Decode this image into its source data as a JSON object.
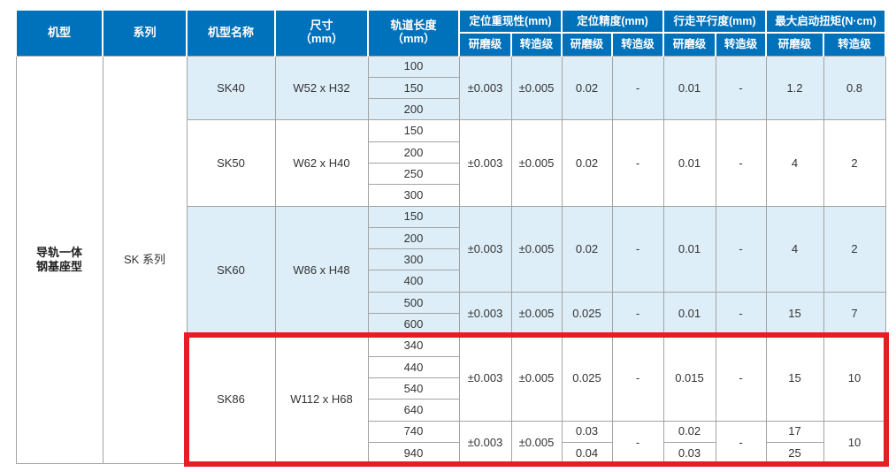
{
  "colors": {
    "header_bg": "#0072bc",
    "header_text": "#ffffff",
    "shaded_block_bg": "#deeef8",
    "grid_line": "#a3a3a3",
    "highlight_border": "#e31e24",
    "body_text": "#333333"
  },
  "header": {
    "machine_type": "机型",
    "series": "系列",
    "model_name": "机型名称",
    "size_l1": "尺寸",
    "size_l2": "（mm）",
    "track_l1": "轨道长度",
    "track_l2": "（mm）",
    "groups": [
      {
        "label": "定位重现性(mm)"
      },
      {
        "label": "定位精度(mm)"
      },
      {
        "label": "行走平行度(mm)"
      },
      {
        "label": "最大启动扭矩(N·cm)"
      }
    ],
    "sub_ground": "研磨级",
    "sub_rolled": "转造级"
  },
  "left": {
    "machine_l1": "导轨一体",
    "machine_l2": "钢基座型",
    "series": "SK 系列"
  },
  "highlight": {
    "model": "SK86"
  },
  "blocks": [
    {
      "model": "SK40",
      "size": "W52 x H32",
      "shaded": true,
      "groups": [
        {
          "lengths": [
            "100",
            "150",
            "200"
          ],
          "rep_g": "±0.003",
          "rep_r": "±0.005",
          "acc_g": "0.02",
          "acc_r": "-",
          "par_g": "0.01",
          "par_r": "-",
          "tor_g": "1.2",
          "tor_r": "0.8"
        }
      ]
    },
    {
      "model": "SK50",
      "size": "W62 x H40",
      "shaded": false,
      "groups": [
        {
          "lengths": [
            "150",
            "200",
            "250",
            "300"
          ],
          "rep_g": "±0.003",
          "rep_r": "±0.005",
          "acc_g": "0.02",
          "acc_r": "-",
          "par_g": "0.01",
          "par_r": "-",
          "tor_g": "4",
          "tor_r": "2"
        }
      ]
    },
    {
      "model": "SK60",
      "size": "W86 x H48",
      "shaded": true,
      "groups": [
        {
          "lengths": [
            "150",
            "200",
            "300",
            "400"
          ],
          "rep_g": "±0.003",
          "rep_r": "±0.005",
          "acc_g": "0.02",
          "acc_r": "-",
          "par_g": "0.01",
          "par_r": "-",
          "tor_g": "4",
          "tor_r": "2"
        },
        {
          "lengths": [
            "500",
            "600"
          ],
          "rep_g": "±0.003",
          "rep_r": "±0.005",
          "acc_g": "0.025",
          "acc_r": "-",
          "par_g": "0.01",
          "par_r": "-",
          "tor_g": "15",
          "tor_r": "7"
        }
      ]
    },
    {
      "model": "SK86",
      "size": "W112 x H68",
      "shaded": false,
      "groups": [
        {
          "lengths": [
            "340",
            "440",
            "540",
            "640"
          ],
          "rep_g": "±0.003",
          "rep_r": "±0.005",
          "acc_g": "0.025",
          "acc_r": "-",
          "par_g": "0.015",
          "par_r": "-",
          "tor_g": "15",
          "tor_r": "10"
        },
        {
          "lengths": [
            "740",
            "940"
          ],
          "rep_g": "±0.003",
          "rep_r": "±0.005",
          "acc_g": [
            "0.03",
            "0.04"
          ],
          "acc_r": "-",
          "par_g": [
            "0.02",
            "0.03"
          ],
          "par_r": "-",
          "tor_g": [
            "17",
            "25"
          ],
          "tor_r": "10"
        }
      ]
    }
  ]
}
